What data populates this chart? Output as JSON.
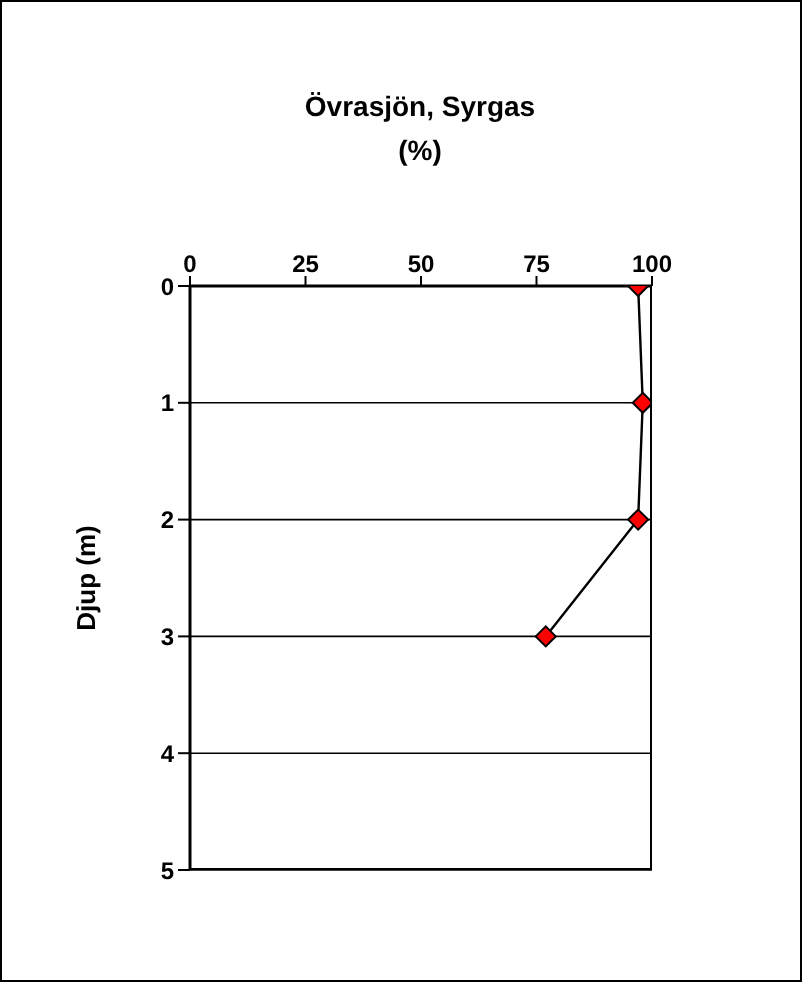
{
  "chart_data": {
    "type": "line",
    "title": "Övrasjön, Syrgas (%)",
    "ylabel": "Djup (m)",
    "orientation": "horizontal",
    "x": [
      0,
      1,
      2,
      3
    ],
    "series": [
      {
        "color": "#000000",
        "values": [
          97,
          98,
          97,
          77
        ]
      }
    ],
    "xlim": [
      0,
      100
    ],
    "xticks": [
      0,
      25,
      50,
      75,
      100
    ],
    "ylim": [
      5,
      0
    ],
    "yticks": [
      0,
      1,
      2,
      3,
      4,
      5
    ],
    "grid": "y",
    "marker": "diamond"
  }
}
